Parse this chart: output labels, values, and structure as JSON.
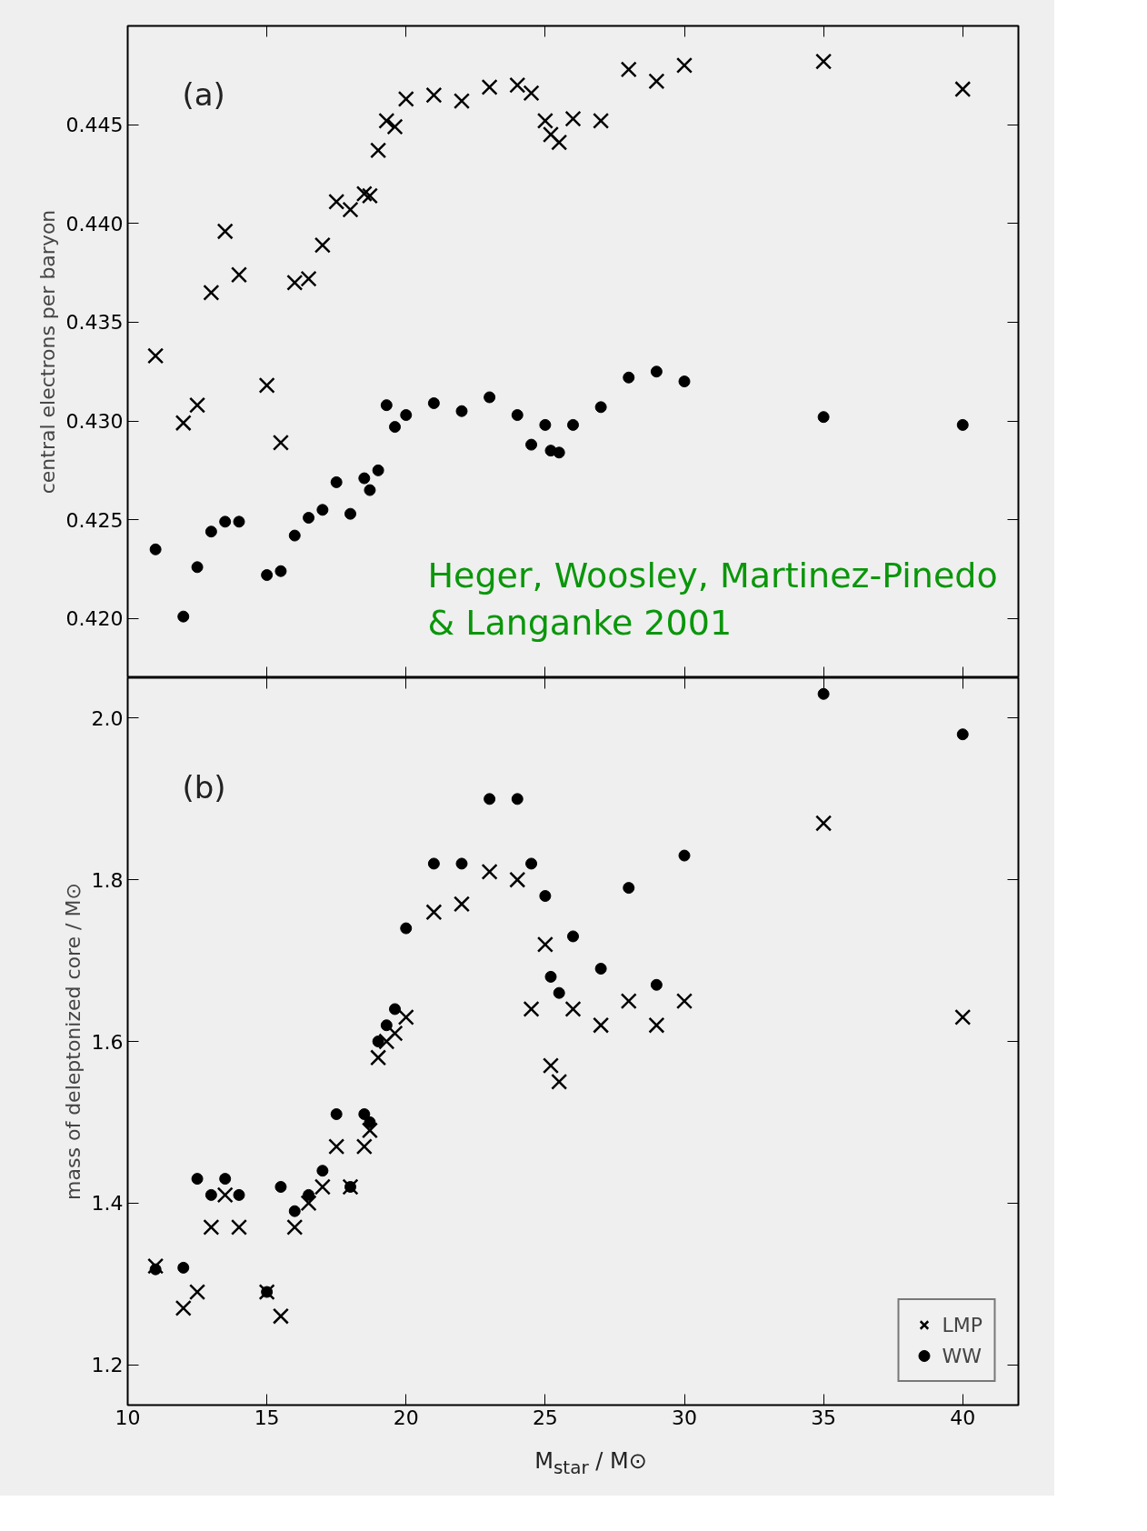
{
  "chart_data": [
    {
      "type": "scatter",
      "ylabel": "central electrons per baryon",
      "annotations": [
        "(a)",
        "Heger, Woosley, Martinez-Pinedo & Langanke 2001"
      ],
      "x": [
        11,
        12,
        12.5,
        13,
        13.5,
        14,
        15,
        15.5,
        16,
        16.5,
        17,
        17.5,
        18,
        18.5,
        18.7,
        19,
        19.3,
        19.6,
        20,
        21,
        22,
        23,
        24,
        24.5,
        25,
        25.2,
        25.5,
        26,
        27,
        28,
        29,
        30,
        35,
        40
      ],
      "series": [
        {
          "color": "#000000",
          "marker": "cross",
          "values": [
            0.4333,
            0.4299,
            0.4308,
            0.4365,
            0.4396,
            0.4374,
            0.4318,
            0.4289,
            0.437,
            0.4372,
            0.4389,
            0.4411,
            0.4407,
            0.4415,
            0.4414,
            0.4437,
            0.4452,
            0.4449,
            0.4463,
            0.4465,
            0.4462,
            0.4469,
            0.447,
            0.4466,
            0.4452,
            0.4445,
            0.4441,
            0.4453,
            0.4452,
            0.4478,
            0.4472,
            0.448,
            0.4482,
            0.4468
          ]
        },
        {
          "color": "#000000",
          "marker": "circle",
          "values": [
            0.4235,
            0.4201,
            0.4226,
            0.4244,
            0.4249,
            0.4249,
            0.4222,
            0.4224,
            0.4242,
            0.4251,
            0.4255,
            0.4269,
            0.4253,
            0.4271,
            0.4265,
            0.4275,
            0.4308,
            0.4297,
            0.4303,
            0.4309,
            0.4305,
            0.4312,
            0.4303,
            0.4288,
            0.4298,
            0.4285,
            0.4284,
            0.4298,
            0.4307,
            0.4322,
            0.4325,
            0.432,
            0.4302,
            0.4298
          ]
        }
      ],
      "xlim": [
        10,
        42
      ],
      "xticks": [
        10,
        15,
        20,
        25,
        30,
        35,
        40
      ],
      "ylim": [
        0.417,
        0.45
      ],
      "yticks": [
        {
          "value": 0.42,
          "label": "0.420"
        },
        {
          "value": 0.425,
          "label": "0.425"
        },
        {
          "value": 0.43,
          "label": "0.430"
        },
        {
          "value": 0.435,
          "label": "0.435"
        },
        {
          "value": 0.44,
          "label": "0.440"
        },
        {
          "value": 0.445,
          "label": "0.445"
        }
      ],
      "tick_labels": "y",
      "grid": false,
      "legend": false
    },
    {
      "type": "scatter",
      "ylabel": "mass of deleptonized core / M⊙",
      "xlabel": "M$_{star}$ / M⊙",
      "annotations": [
        "(b)"
      ],
      "x": [
        11,
        12,
        12.5,
        13,
        13.5,
        14,
        15,
        15.5,
        16,
        16.5,
        17,
        17.5,
        18,
        18.5,
        18.7,
        19,
        19.3,
        19.6,
        20,
        21,
        22,
        23,
        24,
        24.5,
        25,
        25.2,
        25.5,
        26,
        27,
        28,
        29,
        30,
        35,
        40
      ],
      "series": [
        {
          "name": "LMP",
          "color": "#000000",
          "marker": "cross",
          "values": [
            1.322,
            1.27,
            1.29,
            1.37,
            1.41,
            1.37,
            1.29,
            1.26,
            1.37,
            1.4,
            1.42,
            1.47,
            1.42,
            1.47,
            1.49,
            1.58,
            1.6,
            1.61,
            1.63,
            1.76,
            1.77,
            1.81,
            1.8,
            1.64,
            1.72,
            1.57,
            1.55,
            1.64,
            1.62,
            1.65,
            1.62,
            1.65,
            1.87,
            1.63
          ]
        },
        {
          "name": "WW",
          "color": "#000000",
          "marker": "circle",
          "values": [
            1.318,
            1.32,
            1.43,
            1.41,
            1.43,
            1.41,
            1.29,
            1.42,
            1.39,
            1.41,
            1.44,
            1.51,
            1.42,
            1.51,
            1.5,
            1.6,
            1.62,
            1.64,
            1.74,
            1.82,
            1.82,
            1.9,
            1.9,
            1.82,
            1.78,
            1.68,
            1.66,
            1.73,
            1.69,
            1.79,
            1.67,
            1.83,
            2.03,
            1.98
          ]
        }
      ],
      "xlim": [
        10,
        42
      ],
      "xticks": [
        10,
        15,
        20,
        25,
        30,
        35,
        40
      ],
      "ylim": [
        1.15,
        2.05
      ],
      "yticks": [
        1.2,
        1.4,
        1.6,
        1.8,
        {
          "value": 2.0,
          "label": "2.0"
        }
      ],
      "grid": false,
      "legend": "bottom right"
    }
  ]
}
